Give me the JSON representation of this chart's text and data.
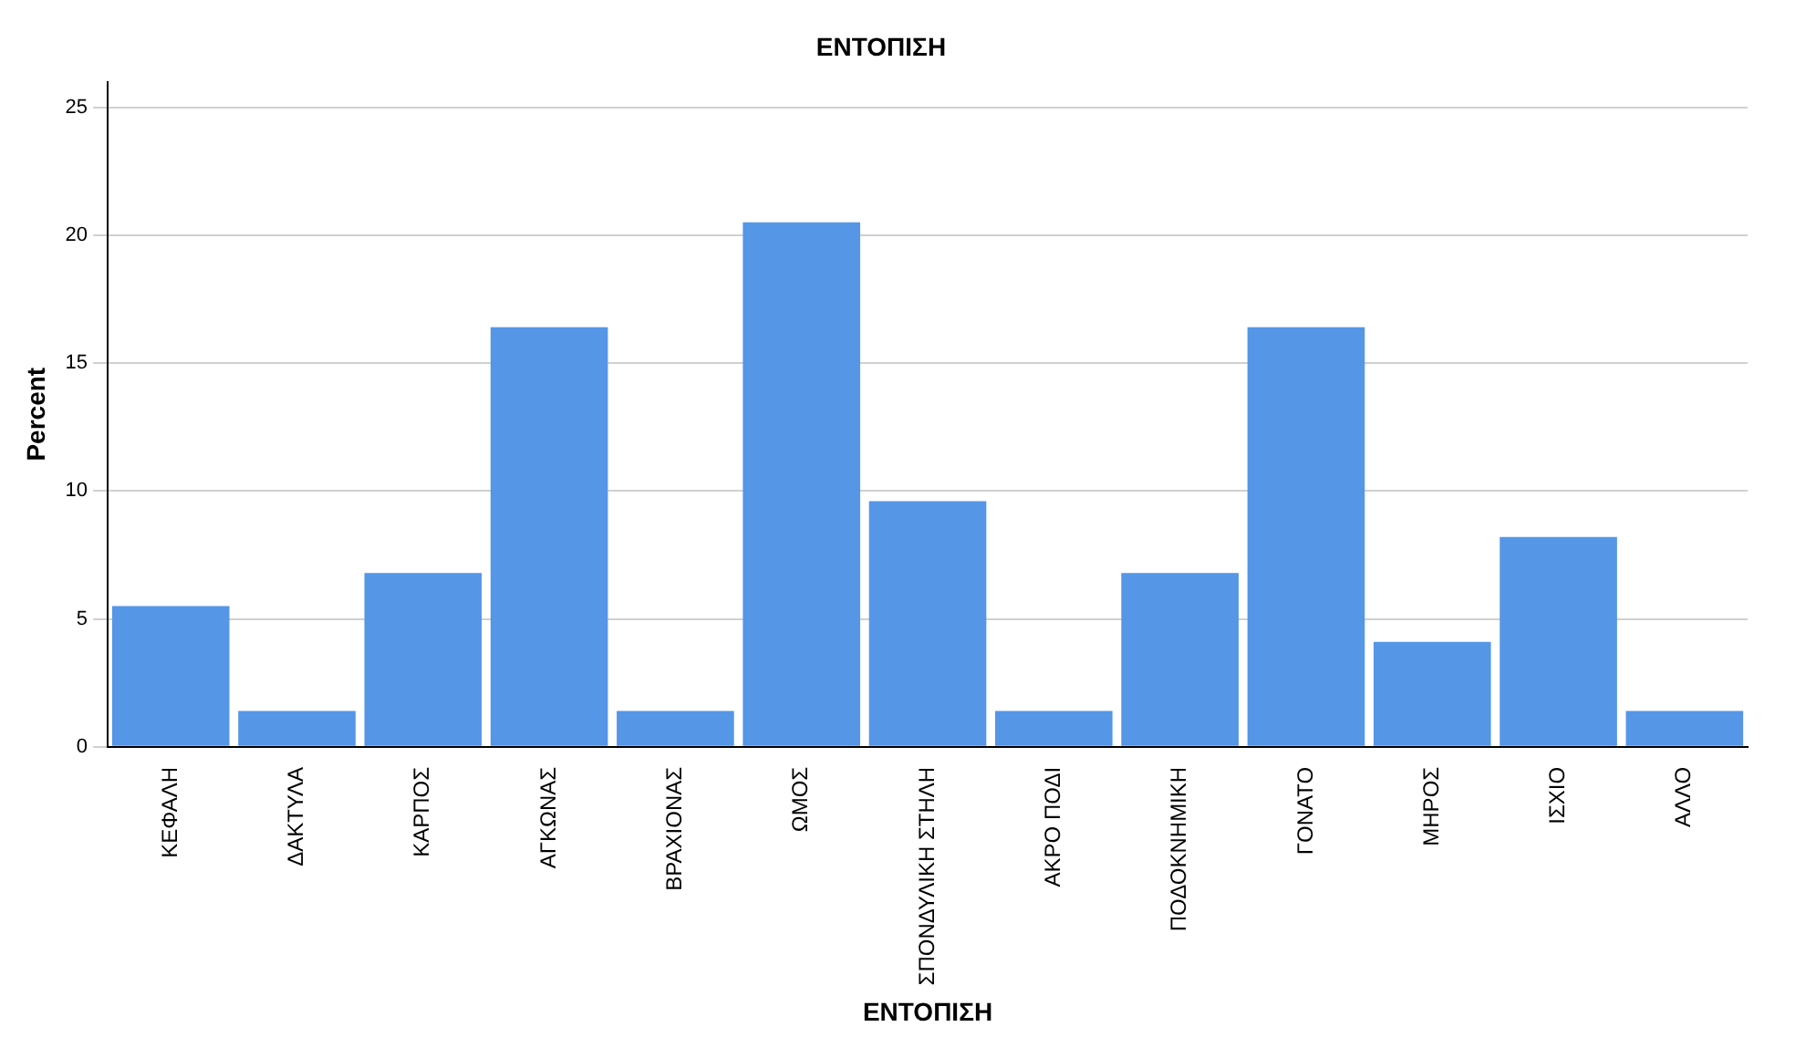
{
  "chart_data": {
    "type": "bar",
    "title": "ΕΝΤΟΠΙΣΗ",
    "xlabel": "ΕΝΤΟΠΙΣΗ",
    "ylabel": "Percent",
    "categories": [
      "ΚΕΦΑΛΗ",
      "ΔΑΚΤΥΛΑ",
      "ΚΑΡΠΟΣ",
      "ΑΓΚΩΝΑΣ",
      "ΒΡΑΧΙΟΝΑΣ",
      "ΩΜΟΣ",
      "ΣΠΟΝΔΥΛΙΚΗ ΣΤΗΛΗ",
      "ΑΚΡΟ ΠΟΔΙ",
      "ΠΟΔΟΚΝΗΜΙΚΗ",
      "ΓΟΝΑΤΟ",
      "ΜΗΡΟΣ",
      "ΙΣΧΙΟ",
      "ΑΛΛΟ"
    ],
    "values": [
      5.5,
      1.4,
      6.8,
      16.4,
      1.4,
      20.5,
      9.6,
      1.4,
      6.8,
      16.4,
      4.1,
      8.2,
      1.4
    ],
    "color": "#5596e6",
    "ylim": [
      0,
      26
    ],
    "yticks": [
      0,
      5,
      10,
      15,
      20,
      25
    ],
    "grid": "y"
  }
}
